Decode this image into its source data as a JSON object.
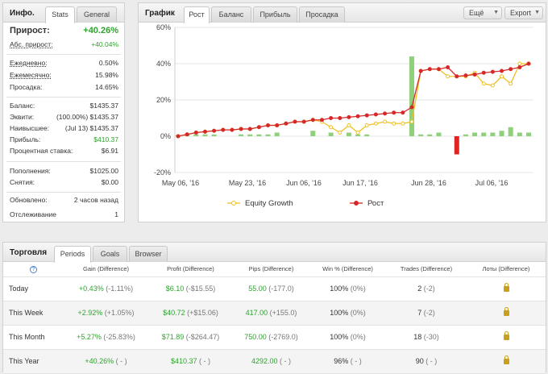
{
  "info": {
    "title": "Инфо.",
    "tabs": [
      "Stats",
      "General"
    ],
    "growth_label": "Прирост:",
    "growth_value": "+40.26%",
    "abs_growth_label": "Абс. прирост:",
    "abs_growth_value": "+40.04%",
    "daily_label": "Ежедневно:",
    "daily_value": "0.50%",
    "monthly_label": "Ежемесячно:",
    "monthly_value": "15.98%",
    "drawdown_label": "Просадка:",
    "drawdown_value": "14.65%",
    "balance_label": "Баланс:",
    "balance_value": "$1435.37",
    "equity_label": "Эквити:",
    "equity_value": "(100.00%) $1435.37",
    "highest_label": "Наивысшее:",
    "highest_value": "(Jul 13) $1435.37",
    "profit_label": "Прибыль:",
    "profit_value": "$410.37",
    "interest_label": "Процентная ставка:",
    "interest_value": "$6.91",
    "deposits_label": "Пополнения:",
    "deposits_value": "$1025.00",
    "withdrawals_label": "Снятия:",
    "withdrawals_value": "$0.00",
    "updated_label": "Обновлено:",
    "updated_value": "2 часов назад",
    "tracking_label": "Отслеживание",
    "tracking_value": "1"
  },
  "chart_panel": {
    "title": "График",
    "tabs": [
      "Рост",
      "Баланс",
      "Прибыль",
      "Просадка"
    ],
    "menu_label": "Ещё",
    "export_label": "Export"
  },
  "chart_data": {
    "type": "line",
    "x_ticks": [
      "May 06, '16",
      "May 23, '16",
      "Jun 06, '16",
      "Jun 17, '16",
      "Jun 28, '16",
      "Jul 06, '16"
    ],
    "y_ticks": [
      "60%",
      "40%",
      "20%",
      "0%",
      "-20%"
    ],
    "ylim": [
      -20,
      60
    ],
    "series": [
      {
        "name": "Equity Growth",
        "color": "#f0c020",
        "values": [
          0,
          1,
          2,
          2.5,
          3,
          3.5,
          3.5,
          4,
          4,
          5,
          6,
          6,
          7,
          8,
          8,
          9,
          8,
          5,
          2,
          6,
          2,
          6,
          7,
          8,
          7,
          7,
          8,
          36,
          37,
          37,
          33,
          33,
          33,
          35,
          29,
          28,
          33,
          29,
          40,
          40
        ]
      },
      {
        "name": "Рост",
        "color": "#d62828",
        "values": [
          0,
          1,
          2,
          2.5,
          3,
          3.5,
          3.5,
          4,
          4,
          5,
          6,
          6,
          7,
          8,
          8,
          9,
          9,
          10,
          10,
          10.5,
          11,
          11.5,
          12,
          12.5,
          13,
          13,
          16,
          36,
          37,
          37,
          38,
          33,
          33.5,
          34,
          35,
          35.5,
          36,
          37,
          38,
          40
        ]
      },
      {
        "name": "bars",
        "color": "#8fd17a",
        "values": [
          0.5,
          1,
          1,
          1,
          1,
          0,
          0,
          1,
          1,
          1,
          1,
          2,
          0,
          0,
          0,
          3,
          0,
          2,
          0,
          2,
          1,
          1,
          0,
          0,
          0,
          0,
          44,
          1,
          1,
          2,
          0,
          -10,
          1,
          2,
          2,
          2,
          3,
          5,
          2,
          2
        ]
      }
    ]
  },
  "trade": {
    "title": "Торговля",
    "tabs": [
      "Periods",
      "Goals",
      "Browser"
    ],
    "headers": [
      "?",
      "Gain (Difference)",
      "Profit (Difference)",
      "Pips (Difference)",
      "Win % (Difference)",
      "Trades (Difference)",
      "Лоты (Difference)"
    ],
    "rows": [
      {
        "period": "Today",
        "gain": "+0.43%",
        "gain_diff": "(-1.11%)",
        "profit": "$6.10",
        "profit_diff": "(-$15.55)",
        "pips": "55.00",
        "pips_diff": "(-177.0)",
        "win": "100%",
        "win_diff": "(0%)",
        "trades": "2",
        "trades_diff": "(-2)"
      },
      {
        "period": "This Week",
        "gain": "+2.92%",
        "gain_diff": "(+1.05%)",
        "profit": "$40.72",
        "profit_diff": "(+$15.06)",
        "pips": "417.00",
        "pips_diff": "(+155.0)",
        "win": "100%",
        "win_diff": "(0%)",
        "trades": "7",
        "trades_diff": "(-2)"
      },
      {
        "period": "This Month",
        "gain": "+5.27%",
        "gain_diff": "(-25.83%)",
        "profit": "$71.89",
        "profit_diff": "(-$264.47)",
        "pips": "750.00",
        "pips_diff": "(-2769.0)",
        "win": "100%",
        "win_diff": "(0%)",
        "trades": "18",
        "trades_diff": "(-30)"
      },
      {
        "period": "This Year",
        "gain": "+40.26%",
        "gain_diff": "( - )",
        "profit": "$410.37",
        "profit_diff": "( - )",
        "pips": "4292.00",
        "pips_diff": "( - )",
        "win": "96%",
        "win_diff": "( - )",
        "trades": "90",
        "trades_diff": "( - )"
      }
    ]
  }
}
